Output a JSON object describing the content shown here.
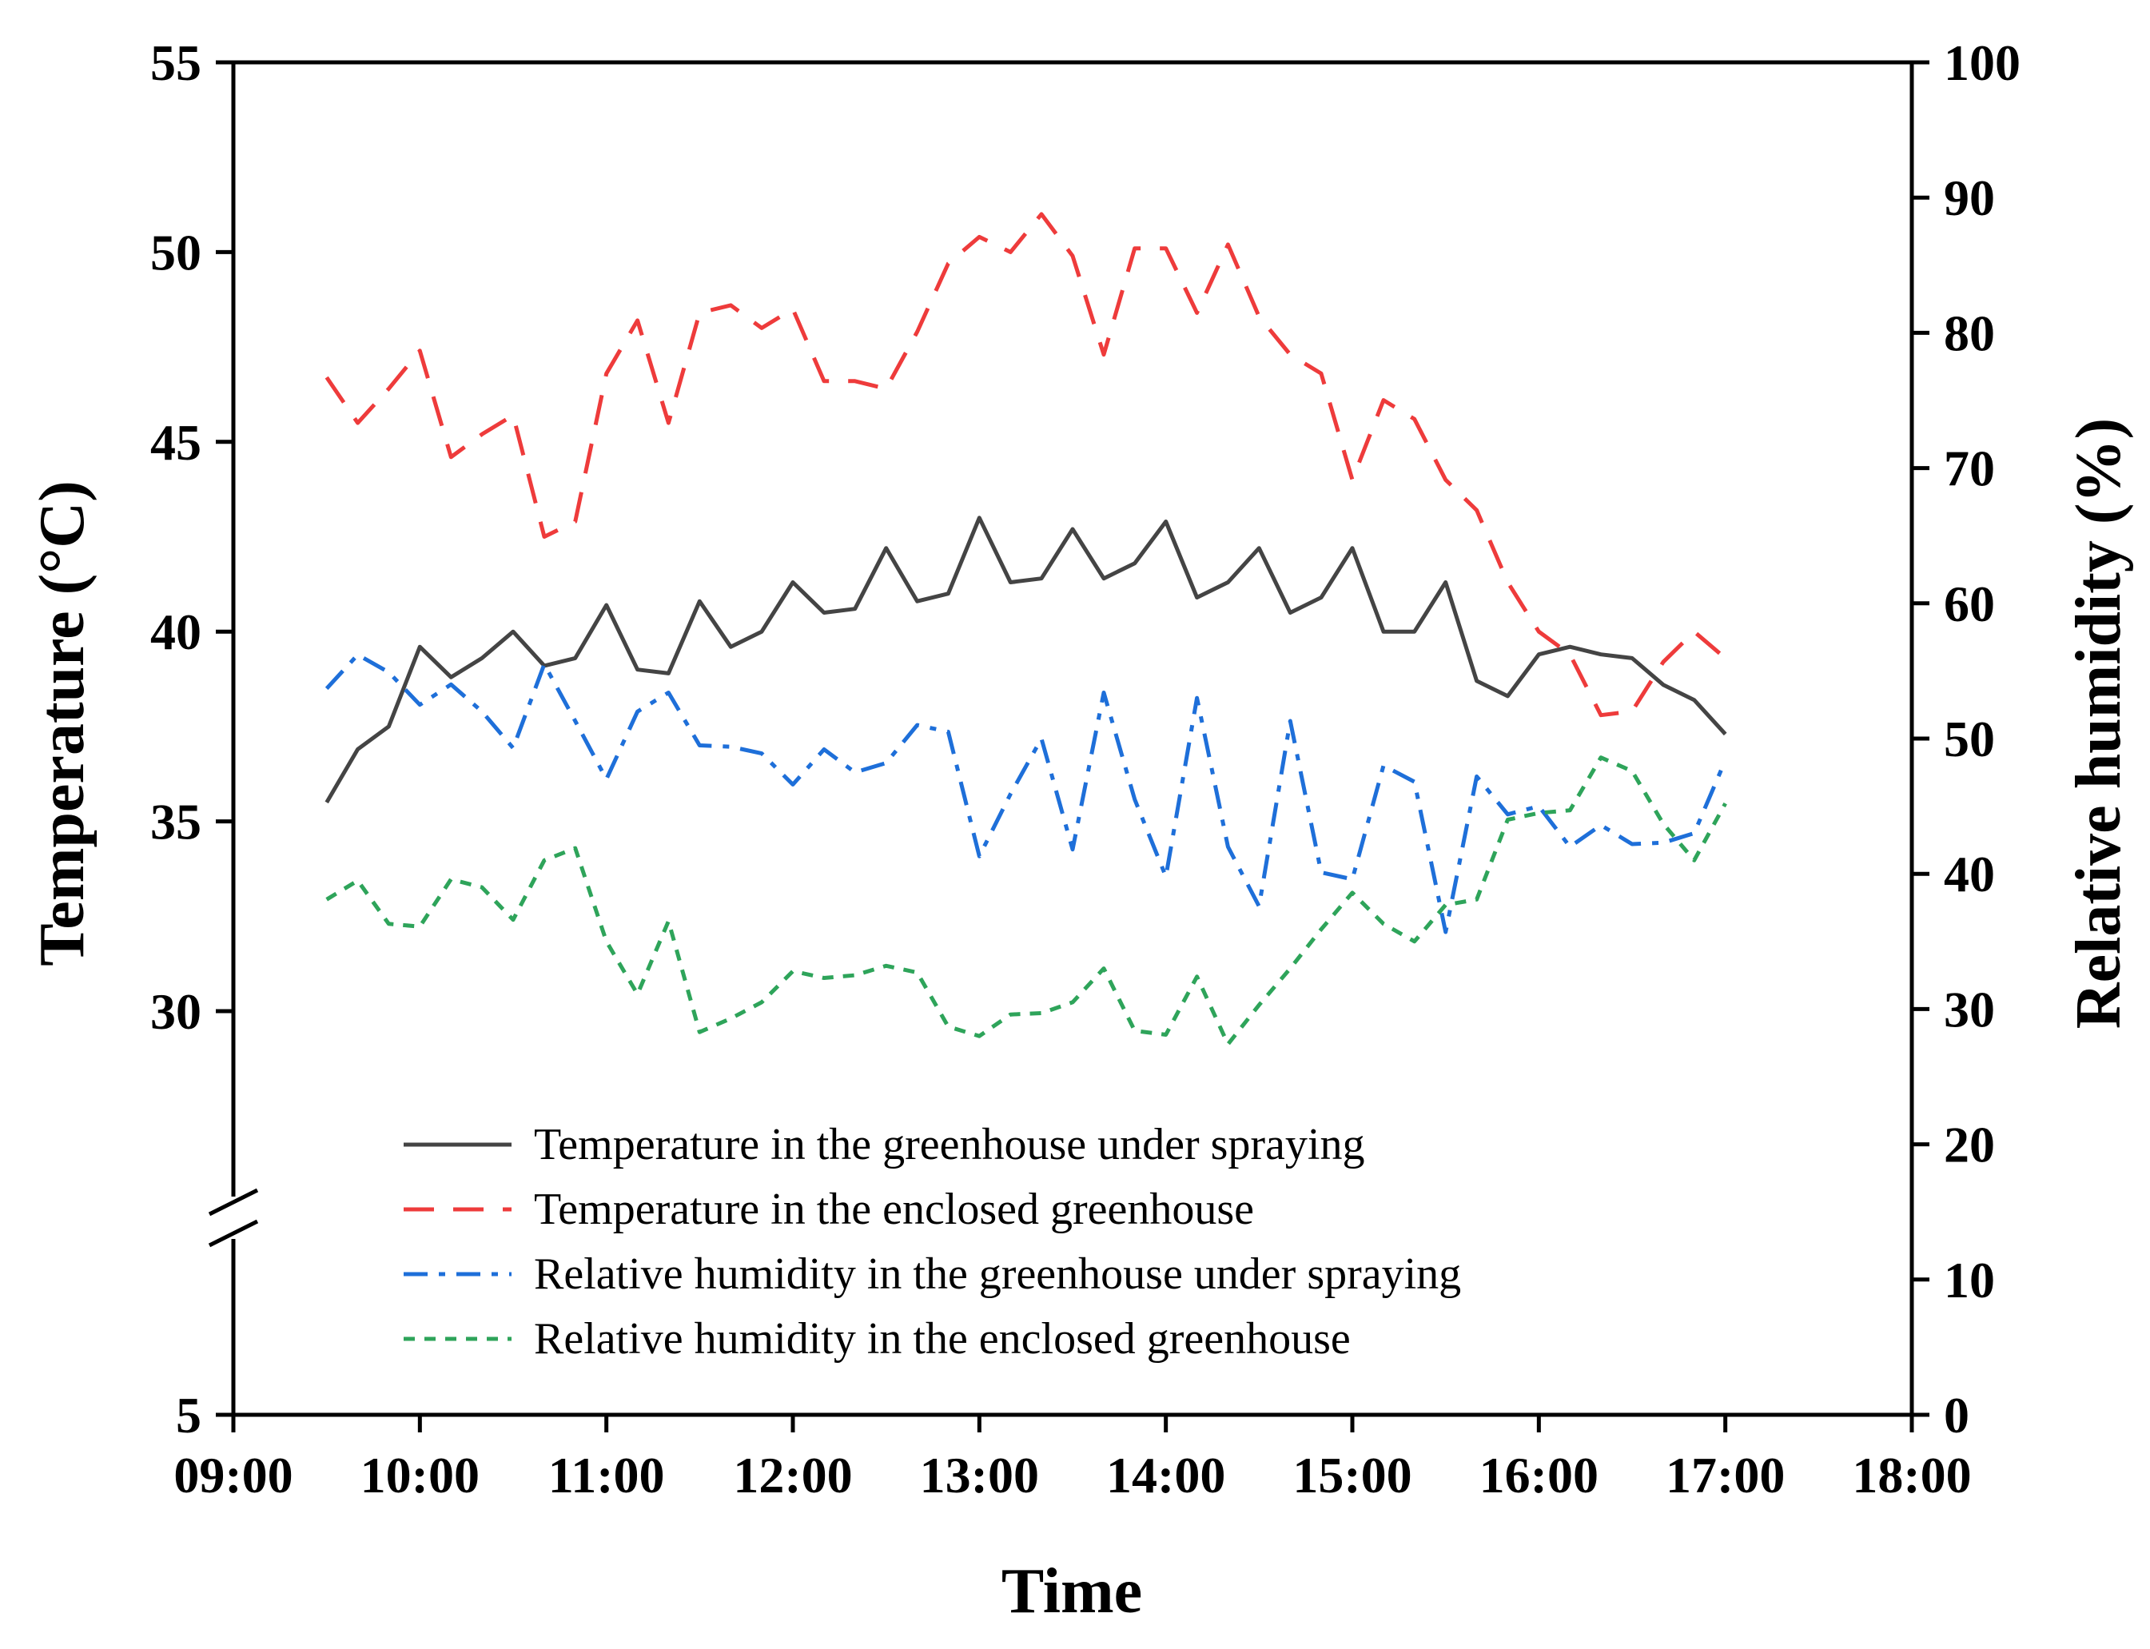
{
  "chart_data": {
    "type": "line",
    "xlabel": "Time",
    "ylabel_left": "Temperature (°C)",
    "ylabel_right": "Relative humidity (%)",
    "x_ticks": [
      "09:00",
      "10:00",
      "11:00",
      "12:00",
      "13:00",
      "14:00",
      "15:00",
      "16:00",
      "17:00",
      "18:00"
    ],
    "y_left_ticks": [
      "5",
      "30",
      "35",
      "40",
      "45",
      "50",
      "55"
    ],
    "y_right_ticks": [
      "0",
      "10",
      "20",
      "30",
      "40",
      "50",
      "60",
      "70",
      "80",
      "90",
      "100"
    ],
    "xlim_hours": [
      9,
      18
    ],
    "ylim_left": [
      5,
      55
    ],
    "ylim_left_break": [
      10,
      26
    ],
    "ylim_right": [
      0,
      100
    ],
    "axis_break": true,
    "x_hours": [
      9.5,
      9.667,
      9.833,
      10.0,
      10.167,
      10.333,
      10.5,
      10.667,
      10.833,
      11.0,
      11.167,
      11.333,
      11.5,
      11.667,
      11.833,
      12.0,
      12.167,
      12.333,
      12.5,
      12.667,
      12.833,
      13.0,
      13.167,
      13.333,
      13.5,
      13.667,
      13.833,
      14.0,
      14.167,
      14.333,
      14.5,
      14.667,
      14.833,
      15.0,
      15.167,
      15.333,
      15.5,
      15.667,
      15.833,
      16.0,
      16.167,
      16.333,
      16.5,
      16.667,
      16.833,
      17.0
    ],
    "series": [
      {
        "name": "Temperature in the greenhouse under spraying",
        "axis": "left",
        "style": "solid",
        "color": "#444444",
        "values": [
          35.5,
          36.9,
          37.5,
          39.6,
          38.8,
          39.3,
          40.0,
          39.1,
          39.3,
          40.7,
          39.0,
          38.9,
          40.8,
          39.6,
          40.0,
          41.3,
          40.5,
          40.6,
          42.2,
          40.8,
          41.0,
          43.0,
          41.3,
          41.4,
          42.7,
          41.4,
          41.8,
          42.9,
          40.9,
          41.3,
          42.2,
          40.5,
          40.9,
          42.2,
          40.0,
          40.0,
          41.3,
          38.7,
          38.3,
          39.4,
          39.6,
          39.4,
          39.3,
          38.6,
          38.2,
          37.3
        ]
      },
      {
        "name": "Temperature in the enclosed greenhouse",
        "axis": "left",
        "style": "dashed",
        "color": "#ee3b3b",
        "values": [
          46.7,
          45.5,
          46.4,
          47.4,
          44.6,
          45.2,
          45.7,
          42.5,
          42.9,
          46.8,
          48.2,
          45.5,
          48.4,
          48.6,
          48.0,
          48.5,
          46.6,
          46.6,
          46.4,
          47.9,
          49.7,
          50.4,
          50.0,
          51.0,
          49.9,
          47.3,
          50.1,
          50.1,
          48.4,
          50.2,
          48.3,
          47.3,
          46.8,
          44.0,
          46.1,
          45.6,
          44.0,
          43.2,
          41.3,
          40.0,
          39.4,
          37.8,
          37.9,
          39.2,
          40.0,
          39.3
        ]
      },
      {
        "name": "Relative humidity in the greenhouse under spraying",
        "axis": "right",
        "style": "dashdot",
        "color": "#1e6fd9",
        "values": [
          53.7,
          56.2,
          54.9,
          52.5,
          54.0,
          52.0,
          49.3,
          55.5,
          51.3,
          47.0,
          52.0,
          53.4,
          49.5,
          49.4,
          48.9,
          46.6,
          49.2,
          47.5,
          48.2,
          51.0,
          50.5,
          41.3,
          45.9,
          50.0,
          41.8,
          53.4,
          45.5,
          39.8,
          53.0,
          42.0,
          37.6,
          51.3,
          40.1,
          39.6,
          48.0,
          46.8,
          35.7,
          47.2,
          44.4,
          45.0,
          42.0,
          43.6,
          42.2,
          42.3,
          43.0,
          48.4
        ]
      },
      {
        "name": "Relative humidity in the enclosed greenhouse",
        "axis": "right",
        "style": "dotted",
        "color": "#2ea45a",
        "values": [
          38.1,
          39.5,
          36.3,
          36.1,
          39.6,
          39.0,
          36.6,
          41.0,
          41.9,
          35.0,
          31.1,
          36.5,
          28.3,
          29.3,
          30.5,
          32.8,
          32.3,
          32.5,
          33.2,
          32.7,
          28.7,
          28.0,
          29.6,
          29.7,
          30.5,
          33.0,
          28.4,
          28.1,
          32.4,
          27.4,
          30.3,
          33.0,
          35.9,
          38.6,
          36.3,
          35.0,
          37.7,
          38.1,
          44.0,
          44.5,
          44.7,
          48.6,
          47.6,
          43.7,
          41.0,
          45.2
        ]
      }
    ],
    "legend": "inside-bottom-center"
  }
}
